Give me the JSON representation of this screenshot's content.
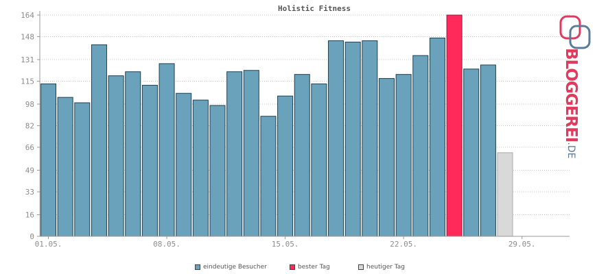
{
  "chart_data": {
    "type": "bar",
    "title": "Holistic Fitness",
    "xlabel": "",
    "ylabel": "",
    "ylim": [
      0,
      164
    ],
    "yticks": [
      0,
      16,
      33,
      49,
      66,
      82,
      98,
      115,
      131,
      148,
      164
    ],
    "grid": true,
    "legend_position": "bottom-center",
    "x_tick_labels": [
      {
        "label": "01.05.",
        "day_index": 1
      },
      {
        "label": "08.05.",
        "day_index": 8
      },
      {
        "label": "15.05.",
        "day_index": 15
      },
      {
        "label": "22.05.",
        "day_index": 22
      },
      {
        "label": "29.05.",
        "day_index": 29
      }
    ],
    "series": [
      {
        "name": "eindeutige Besucher",
        "color": "#6ba2bb"
      },
      {
        "name": "bester Tag",
        "color": "#ff2a5a"
      },
      {
        "name": "heutiger Tag",
        "color": "#d9d9d9"
      }
    ],
    "bars": [
      {
        "day": 1,
        "value": 113,
        "series": 0
      },
      {
        "day": 2,
        "value": 103,
        "series": 0
      },
      {
        "day": 3,
        "value": 99,
        "series": 0
      },
      {
        "day": 4,
        "value": 142,
        "series": 0
      },
      {
        "day": 5,
        "value": 119,
        "series": 0
      },
      {
        "day": 6,
        "value": 122,
        "series": 0
      },
      {
        "day": 7,
        "value": 112,
        "series": 0
      },
      {
        "day": 8,
        "value": 128,
        "series": 0
      },
      {
        "day": 9,
        "value": 106,
        "series": 0
      },
      {
        "day": 10,
        "value": 101,
        "series": 0
      },
      {
        "day": 11,
        "value": 97,
        "series": 0
      },
      {
        "day": 12,
        "value": 122,
        "series": 0
      },
      {
        "day": 13,
        "value": 123,
        "series": 0
      },
      {
        "day": 14,
        "value": 89,
        "series": 0
      },
      {
        "day": 15,
        "value": 104,
        "series": 0
      },
      {
        "day": 16,
        "value": 120,
        "series": 0
      },
      {
        "day": 17,
        "value": 113,
        "series": 0
      },
      {
        "day": 18,
        "value": 145,
        "series": 0
      },
      {
        "day": 19,
        "value": 144,
        "series": 0
      },
      {
        "day": 20,
        "value": 145,
        "series": 0
      },
      {
        "day": 21,
        "value": 117,
        "series": 0
      },
      {
        "day": 22,
        "value": 120,
        "series": 0
      },
      {
        "day": 23,
        "value": 134,
        "series": 0
      },
      {
        "day": 24,
        "value": 147,
        "series": 0
      },
      {
        "day": 25,
        "value": 164,
        "series": 1
      },
      {
        "day": 26,
        "value": 124,
        "series": 0
      },
      {
        "day": 27,
        "value": 127,
        "series": 0
      },
      {
        "day": 28,
        "value": 62,
        "series": 2
      }
    ]
  },
  "logo": {
    "text": "BLOGGEREI",
    "tld": ".DE",
    "colors": {
      "primary": "#e03a5c",
      "secondary": "#5b7c98"
    }
  }
}
